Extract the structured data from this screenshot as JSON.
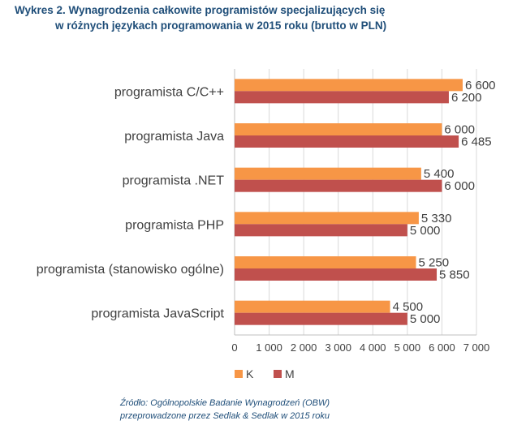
{
  "title_line1": "Wykres 2. Wynagrodzenia całkowite programistów specjalizujących się",
  "title_line2": "w różnych językach programowania w 2015 roku (brutto w PLN)",
  "source_line1": "Źródło: Ogólnopolskie Badanie Wynagrodzeń (OBW)",
  "source_line2": "przeprowadzone przez Sedlak & Sedlak w 2015 roku",
  "colors": {
    "K": "#f79646",
    "M": "#c0504d",
    "title": "#1f4e79"
  },
  "chart_data": {
    "type": "bar",
    "orientation": "horizontal",
    "categories": [
      "programista C/C++",
      "programista Java",
      "programista .NET",
      "programista PHP",
      "programista (stanowisko ogólne)",
      "programista JavaScript"
    ],
    "series": [
      {
        "name": "K",
        "values": [
          6600,
          6000,
          5400,
          5330,
          5250,
          4500
        ],
        "labels": [
          "6 600",
          "6 000",
          "5 400",
          "5 330",
          "5 250",
          "4 500"
        ]
      },
      {
        "name": "M",
        "values": [
          6200,
          6485,
          6000,
          5000,
          5850,
          5000
        ],
        "labels": [
          "6 200",
          "6 485",
          "6 000",
          "5 000",
          "5 850",
          "5 000"
        ]
      }
    ],
    "xlim": [
      0,
      7000
    ],
    "xticks": [
      0,
      1000,
      2000,
      3000,
      4000,
      5000,
      6000,
      7000
    ],
    "xtick_labels": [
      "0",
      "1 000",
      "2 000",
      "3 000",
      "4 000",
      "5 000",
      "6 000",
      "7 000"
    ],
    "grid": true,
    "legend_position": "bottom-left"
  }
}
